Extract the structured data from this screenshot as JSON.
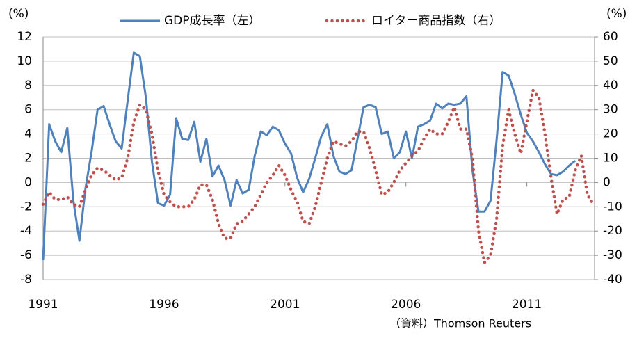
{
  "chart_data": {
    "type": "line",
    "ylabel": "(%)",
    "y2label": "(%)",
    "source": "（資料）Thomson Reuters",
    "x": [
      1991,
      1991.25,
      1991.5,
      1991.75,
      1992,
      1992.25,
      1992.5,
      1992.75,
      1993,
      1993.25,
      1993.5,
      1993.75,
      1994,
      1994.25,
      1994.5,
      1994.75,
      1995,
      1995.25,
      1995.5,
      1995.75,
      1996,
      1996.25,
      1996.5,
      1996.75,
      1997,
      1997.25,
      1997.5,
      1997.75,
      1998,
      1998.25,
      1998.5,
      1998.75,
      1999,
      1999.25,
      1999.5,
      1999.75,
      2000,
      2000.25,
      2000.5,
      2000.75,
      2001,
      2001.25,
      2001.5,
      2001.75,
      2002,
      2002.25,
      2002.5,
      2002.75,
      2003,
      2003.25,
      2003.5,
      2003.75,
      2004,
      2004.25,
      2004.5,
      2004.75,
      2005,
      2005.25,
      2005.5,
      2005.75,
      2006,
      2006.25,
      2006.5,
      2006.75,
      2007,
      2007.25,
      2007.5,
      2007.75,
      2008,
      2008.25,
      2008.5,
      2008.75,
      2009,
      2009.25,
      2009.5,
      2009.75,
      2010,
      2010.25,
      2010.5,
      2010.75,
      2011,
      2011.25,
      2011.5,
      2011.75,
      2012,
      2012.25,
      2012.5,
      2012.75,
      2013,
      2013.25,
      2013.5,
      2013.75
    ],
    "series": [
      {
        "name": "GDP成長率（左）",
        "color": "#4f81bd",
        "style": "solid",
        "values": [
          -6.4,
          4.8,
          3.4,
          2.5,
          4.5,
          -1.5,
          -4.8,
          -0.5,
          2.5,
          6.0,
          6.3,
          4.8,
          3.4,
          2.8,
          6.8,
          10.7,
          10.4,
          7.0,
          1.7,
          -1.7,
          -1.9,
          -1.0,
          5.3,
          3.6,
          3.5,
          5.0,
          1.7,
          3.6,
          0.5,
          1.4,
          0.2,
          -1.9,
          0.2,
          -0.9,
          -0.6,
          2.2,
          4.2,
          3.9,
          4.6,
          4.3,
          3.2,
          2.4,
          0.4,
          -0.8,
          0.3,
          2.0,
          3.8,
          4.8,
          2.2,
          0.9,
          0.7,
          1.0,
          3.6,
          6.2,
          6.4,
          6.2,
          4.0,
          4.2,
          2.0,
          2.5,
          4.2,
          2.0,
          4.6,
          4.8,
          5.1,
          6.5,
          6.1,
          6.5,
          6.4,
          6.5,
          7.1,
          1.0,
          -2.4,
          -2.4,
          -1.5,
          3.5,
          9.1,
          8.8,
          7.3,
          5.6,
          4.1,
          3.4,
          2.5,
          1.5,
          0.7,
          0.6,
          0.9,
          1.4,
          1.8,
          null,
          null,
          null
        ]
      },
      {
        "name": "ロイター商品指数（右）",
        "color": "#c0504d",
        "style": "dotted",
        "axis": "y2",
        "values": [
          -9,
          -4,
          -7,
          -7,
          -6,
          -9,
          -10,
          -3,
          3,
          6,
          5,
          3,
          1,
          2,
          10,
          25,
          32,
          30,
          20,
          5,
          -5,
          -8,
          -10,
          -10,
          -10,
          -7,
          -1,
          -1,
          -7,
          -17,
          -23,
          -23,
          -17,
          -16,
          -13,
          -10,
          -5,
          0,
          3,
          7,
          3,
          -3,
          -8,
          -16,
          -17,
          -10,
          0,
          10,
          17,
          16,
          15,
          17,
          21,
          21,
          14,
          5,
          -5,
          -4,
          0,
          5,
          8,
          11,
          13,
          18,
          22,
          20,
          20,
          25,
          31,
          22,
          22,
          10,
          -20,
          -33,
          -30,
          -15,
          15,
          30,
          20,
          12,
          25,
          38,
          35,
          20,
          2,
          -13,
          -7,
          -6,
          5,
          11,
          -5,
          -9
        ]
      }
    ],
    "xlim": [
      1991,
      2013.8
    ],
    "xticks": [
      1991,
      1996,
      2001,
      2006,
      2011
    ],
    "ylim": [
      -8,
      12
    ],
    "yticks": [
      -8,
      -6,
      -4,
      -2,
      0,
      2,
      4,
      6,
      8,
      10,
      12
    ],
    "y2lim": [
      -40,
      60
    ],
    "y2ticks": [
      -40,
      -30,
      -20,
      -10,
      0,
      10,
      20,
      30,
      40,
      50,
      60
    ],
    "grid": true
  }
}
